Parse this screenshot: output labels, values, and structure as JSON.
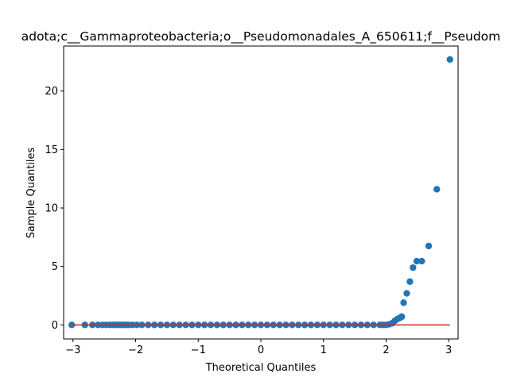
{
  "chart_data": {
    "type": "scatter",
    "title": "adota;c__Gammaproteobacteria;o__Pseudomonadales_A_650611;f__Pseudom",
    "xlabel": "Theoretical Quantiles",
    "ylabel": "Sample Quantiles",
    "xlim": [
      -3.15,
      3.15
    ],
    "ylim": [
      -1.2,
      23.85
    ],
    "xticks": [
      -3,
      -2,
      -1,
      0,
      1,
      2,
      3
    ],
    "xtick_labels": [
      "−3",
      "−2",
      "−1",
      "0",
      "1",
      "2",
      "3"
    ],
    "yticks": [
      0,
      5,
      10,
      15,
      20
    ],
    "ytick_labels": [
      "0",
      "5",
      "10",
      "15",
      "20"
    ],
    "grid": false,
    "marker_color": "#1f77b4",
    "reference_line": {
      "color": "#d62728",
      "x": [
        -3.02,
        3.02
      ],
      "y": [
        0,
        0
      ]
    },
    "series": [
      {
        "x": [
          -3.02,
          -2.81,
          -2.69,
          -2.6,
          -2.53,
          -2.47,
          -2.41,
          -2.36,
          -2.31,
          -2.27,
          -2.23,
          -2.19,
          -2.15,
          -2.11,
          -2.05,
          -1.98,
          -1.9,
          -1.8,
          -1.7,
          -1.6,
          -1.5,
          -1.4,
          -1.3,
          -1.2,
          -1.1,
          -1.0,
          -0.9,
          -0.8,
          -0.7,
          -0.6,
          -0.5,
          -0.4,
          -0.3,
          -0.2,
          -0.1,
          0.0,
          0.1,
          0.2,
          0.3,
          0.4,
          0.5,
          0.6,
          0.7,
          0.8,
          0.9,
          1.0,
          1.1,
          1.2,
          1.3,
          1.4,
          1.5,
          1.6,
          1.7,
          1.8,
          1.9,
          1.95,
          2.0,
          2.05,
          2.1,
          2.14,
          2.18,
          2.22,
          2.25,
          2.28,
          2.33,
          2.38,
          2.43,
          2.49,
          2.57,
          2.68,
          2.81,
          3.02
        ],
        "y": [
          0,
          0,
          0,
          0,
          0,
          0,
          0,
          0,
          0,
          0,
          0,
          0,
          0,
          0,
          0,
          0,
          0,
          0,
          0,
          0,
          0,
          0,
          0,
          0,
          0,
          0,
          0,
          0,
          0,
          0,
          0,
          0,
          0,
          0,
          0,
          0,
          0,
          0,
          0,
          0,
          0,
          0,
          0,
          0,
          0,
          0,
          0,
          0,
          0,
          0,
          0,
          0,
          0,
          0,
          0,
          0,
          0,
          0.05,
          0.15,
          0.35,
          0.5,
          0.6,
          0.7,
          1.9,
          2.7,
          3.7,
          4.9,
          5.45,
          5.45,
          6.75,
          11.6,
          22.7
        ]
      }
    ]
  }
}
